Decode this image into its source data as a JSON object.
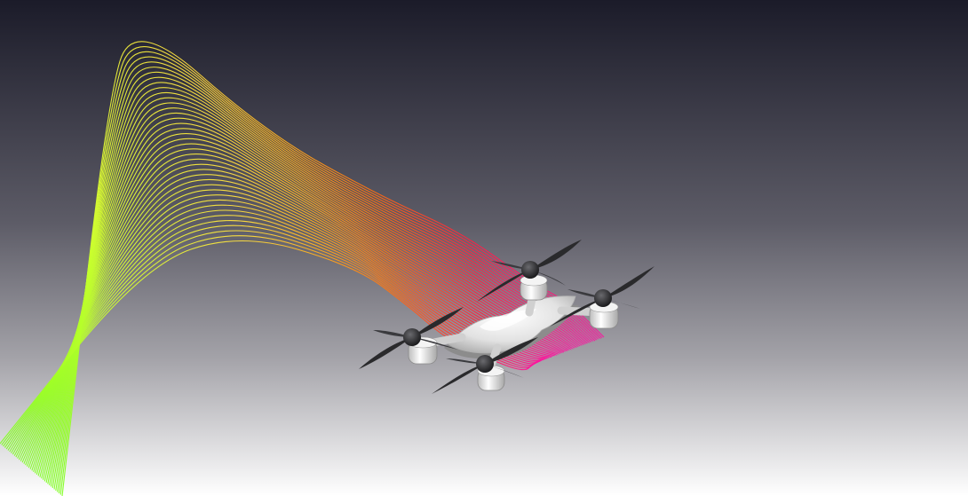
{
  "scene": {
    "subject": "quadcopter-drone",
    "rotor_count": 4,
    "background_gradient": [
      "#1b1b29",
      "#5b5a66",
      "#9d9ca2",
      "#ffffff"
    ],
    "streamline_colors": [
      "#7fff20",
      "#d8ff30",
      "#ffe040",
      "#ffb020",
      "#ff7010",
      "#ff2040",
      "#ff10a0"
    ],
    "drone_body_color": "#e6e6e6",
    "propeller_color": "#2a2a2c",
    "streamline_count": 40
  }
}
